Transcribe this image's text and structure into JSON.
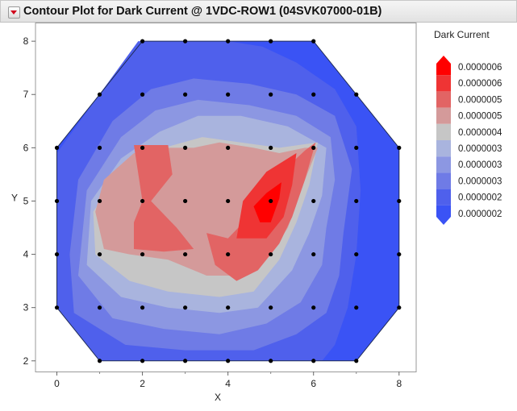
{
  "window": {
    "title": "Contour Plot for Dark Current @ 1VDC-ROW1 (04SVK07000-01B)"
  },
  "chart_data": {
    "type": "contour",
    "title": "Contour Plot for Dark Current @ 1VDC-ROW1 (04SVK07000-01B)",
    "xlabel": "X",
    "ylabel": "Y",
    "xlim": [
      -0.5,
      8.4
    ],
    "ylim": [
      1.8,
      8.35
    ],
    "x_ticks": [
      0,
      2,
      4,
      6,
      8
    ],
    "y_ticks": [
      2,
      3,
      4,
      5,
      6,
      7,
      8
    ],
    "points": [
      [
        2,
        8
      ],
      [
        3,
        8
      ],
      [
        4,
        8
      ],
      [
        5,
        8
      ],
      [
        6,
        8
      ],
      [
        1,
        7
      ],
      [
        2,
        7
      ],
      [
        3,
        7
      ],
      [
        4,
        7
      ],
      [
        5,
        7
      ],
      [
        6,
        7
      ],
      [
        7,
        7
      ],
      [
        0,
        6
      ],
      [
        1,
        6
      ],
      [
        2,
        6
      ],
      [
        3,
        6
      ],
      [
        4,
        6
      ],
      [
        5,
        6
      ],
      [
        6,
        6
      ],
      [
        7,
        6
      ],
      [
        8,
        6
      ],
      [
        0,
        5
      ],
      [
        1,
        5
      ],
      [
        2,
        5
      ],
      [
        3,
        5
      ],
      [
        4,
        5
      ],
      [
        5,
        5
      ],
      [
        6,
        5
      ],
      [
        7,
        5
      ],
      [
        8,
        5
      ],
      [
        0,
        4
      ],
      [
        1,
        4
      ],
      [
        2,
        4
      ],
      [
        3,
        4
      ],
      [
        4,
        4
      ],
      [
        5,
        4
      ],
      [
        6,
        4
      ],
      [
        7,
        4
      ],
      [
        8,
        4
      ],
      [
        0,
        3
      ],
      [
        1,
        3
      ],
      [
        2,
        3
      ],
      [
        3,
        3
      ],
      [
        4,
        3
      ],
      [
        5,
        3
      ],
      [
        6,
        3
      ],
      [
        7,
        3
      ],
      [
        8,
        3
      ],
      [
        1,
        2
      ],
      [
        2,
        2
      ],
      [
        3,
        2
      ],
      [
        4,
        2
      ],
      [
        5,
        2
      ],
      [
        6,
        2
      ],
      [
        7,
        2
      ]
    ],
    "boundary": [
      [
        0,
        6
      ],
      [
        2,
        8
      ],
      [
        6,
        8
      ],
      [
        8,
        6
      ],
      [
        8,
        3
      ],
      [
        7,
        2
      ],
      [
        1,
        2
      ],
      [
        0,
        3
      ]
    ],
    "legend": {
      "title": "Dark Current",
      "levels": [
        "0.0000006",
        "0.0000006",
        "0.0000005",
        "0.0000005",
        "0.0000004",
        "0.0000003",
        "0.0000003",
        "0.0000003",
        "0.0000002",
        "0.0000002"
      ],
      "colors": [
        "#ff0000",
        "#ef3434",
        "#e26464",
        "#d49a9a",
        "#c6c6c6",
        "#a9b4de",
        "#8c97e2",
        "#6f7be6",
        "#4f60ec",
        "#3a53f5"
      ]
    },
    "regions": [
      {
        "fill": "#3a53f5",
        "poly": [
          [
            0,
            6
          ],
          [
            2,
            8
          ],
          [
            6,
            8
          ],
          [
            8,
            6
          ],
          [
            8,
            3
          ],
          [
            7,
            2
          ],
          [
            1,
            2
          ],
          [
            0,
            3
          ]
        ]
      },
      {
        "fill": "#4f60ec",
        "poly": [
          [
            0,
            5.9
          ],
          [
            1.9,
            8
          ],
          [
            4,
            8
          ],
          [
            4.8,
            7.9
          ],
          [
            5.6,
            7.6
          ],
          [
            6.5,
            7.1
          ],
          [
            7,
            6.4
          ],
          [
            7.1,
            5.2
          ],
          [
            7,
            4
          ],
          [
            6.8,
            3
          ],
          [
            6.5,
            2.3
          ],
          [
            6.2,
            2
          ],
          [
            1,
            2
          ],
          [
            0,
            3
          ]
        ]
      },
      {
        "fill": "#6f7be6",
        "poly": [
          [
            0.5,
            5.4
          ],
          [
            1.3,
            6.5
          ],
          [
            2.2,
            7.1
          ],
          [
            3.2,
            7.3
          ],
          [
            4.5,
            7.2
          ],
          [
            5.6,
            7
          ],
          [
            6.5,
            6.6
          ],
          [
            6.9,
            5.6
          ],
          [
            6.7,
            4.4
          ],
          [
            6.6,
            3.6
          ],
          [
            6.3,
            2.9
          ],
          [
            5.6,
            2.5
          ],
          [
            4.6,
            2.2
          ],
          [
            3,
            2.2
          ],
          [
            1.6,
            2.3
          ],
          [
            0.4,
            2.9
          ],
          [
            0.3,
            4
          ]
        ]
      },
      {
        "fill": "#8c97e2",
        "poly": [
          [
            0.7,
            5.2
          ],
          [
            1.5,
            6.2
          ],
          [
            2.3,
            6.7
          ],
          [
            3.3,
            6.9
          ],
          [
            4.5,
            6.8
          ],
          [
            5.6,
            6.6
          ],
          [
            6.4,
            6.2
          ],
          [
            6.5,
            5.4
          ],
          [
            6.3,
            4.5
          ],
          [
            6.2,
            3.8
          ],
          [
            5.7,
            3.1
          ],
          [
            4.9,
            2.7
          ],
          [
            3.8,
            2.5
          ],
          [
            2.5,
            2.6
          ],
          [
            1.3,
            2.8
          ],
          [
            0.5,
            3.6
          ]
        ]
      },
      {
        "fill": "#a9b4de",
        "poly": [
          [
            0.8,
            5
          ],
          [
            1.5,
            5.8
          ],
          [
            2.4,
            6.3
          ],
          [
            3.3,
            6.6
          ],
          [
            4.3,
            6.6
          ],
          [
            5.4,
            6.4
          ],
          [
            6.3,
            6
          ],
          [
            6.2,
            5.1
          ],
          [
            5.9,
            4.4
          ],
          [
            5.5,
            3.7
          ],
          [
            4.7,
            3
          ],
          [
            3.8,
            2.9
          ],
          [
            2.6,
            3
          ],
          [
            1.5,
            3.2
          ],
          [
            0.7,
            3.8
          ]
        ]
      },
      {
        "fill": "#c6c6c6",
        "poly": [
          [
            0.85,
            4.8
          ],
          [
            1.5,
            5.6
          ],
          [
            2.5,
            6
          ],
          [
            3.4,
            6.2
          ],
          [
            4.3,
            6.1
          ],
          [
            5.2,
            6
          ],
          [
            6.1,
            6.1
          ],
          [
            5.9,
            5.3
          ],
          [
            5.6,
            4.6
          ],
          [
            5.2,
            3.9
          ],
          [
            4.6,
            3.3
          ],
          [
            3.8,
            3.2
          ],
          [
            2.6,
            3.3
          ],
          [
            1.7,
            3.5
          ],
          [
            0.9,
            4
          ]
        ]
      },
      {
        "fill": "#d49a9a",
        "poly": [
          [
            0.9,
            4.8
          ],
          [
            1.1,
            5.4
          ],
          [
            1.8,
            5.9
          ],
          [
            2.6,
            6
          ],
          [
            3.2,
            6
          ],
          [
            3.8,
            6.1
          ],
          [
            4.6,
            6
          ],
          [
            5.2,
            5.9
          ],
          [
            5.8,
            6
          ],
          [
            6.1,
            6
          ],
          [
            5.7,
            5.2
          ],
          [
            5.4,
            4.5
          ],
          [
            5,
            4
          ],
          [
            4.3,
            3.6
          ],
          [
            3.5,
            3.6
          ],
          [
            2.6,
            3.9
          ],
          [
            1.7,
            4
          ],
          [
            1.1,
            4.1
          ]
        ]
      },
      {
        "fill": "#e26464",
        "poly": [
          [
            1.8,
            6.05
          ],
          [
            2.6,
            6.05
          ],
          [
            2.7,
            5.5
          ],
          [
            2.2,
            5
          ],
          [
            2.8,
            4.5
          ],
          [
            3.2,
            4.1
          ],
          [
            2.5,
            4.05
          ],
          [
            1.8,
            4.1
          ],
          [
            1.8,
            4.6
          ],
          [
            2,
            5
          ]
        ]
      },
      {
        "fill": "#e26464",
        "poly": [
          [
            3.5,
            4.4
          ],
          [
            4,
            4.3
          ],
          [
            4.3,
            4.55
          ],
          [
            4.6,
            5
          ],
          [
            5.2,
            5.5
          ],
          [
            5.8,
            5.95
          ],
          [
            6.05,
            6.1
          ],
          [
            5.8,
            5.4
          ],
          [
            5.5,
            4.7
          ],
          [
            5.2,
            4.2
          ],
          [
            4.7,
            3.7
          ],
          [
            4.2,
            3.5
          ],
          [
            3.7,
            3.8
          ]
        ]
      },
      {
        "fill": "#ef3434",
        "poly": [
          [
            4.2,
            4.3
          ],
          [
            4.35,
            5.0
          ],
          [
            4.9,
            5.55
          ],
          [
            5.6,
            5.9
          ],
          [
            5.5,
            5.3
          ],
          [
            5.3,
            4.7
          ],
          [
            4.9,
            4.3
          ]
        ]
      },
      {
        "fill": "#ff0000",
        "poly": [
          [
            4.6,
            4.9
          ],
          [
            4.9,
            5.15
          ],
          [
            5.25,
            5.35
          ],
          [
            5.2,
            5.05
          ],
          [
            5.0,
            4.6
          ],
          [
            4.75,
            4.6
          ]
        ]
      }
    ]
  }
}
